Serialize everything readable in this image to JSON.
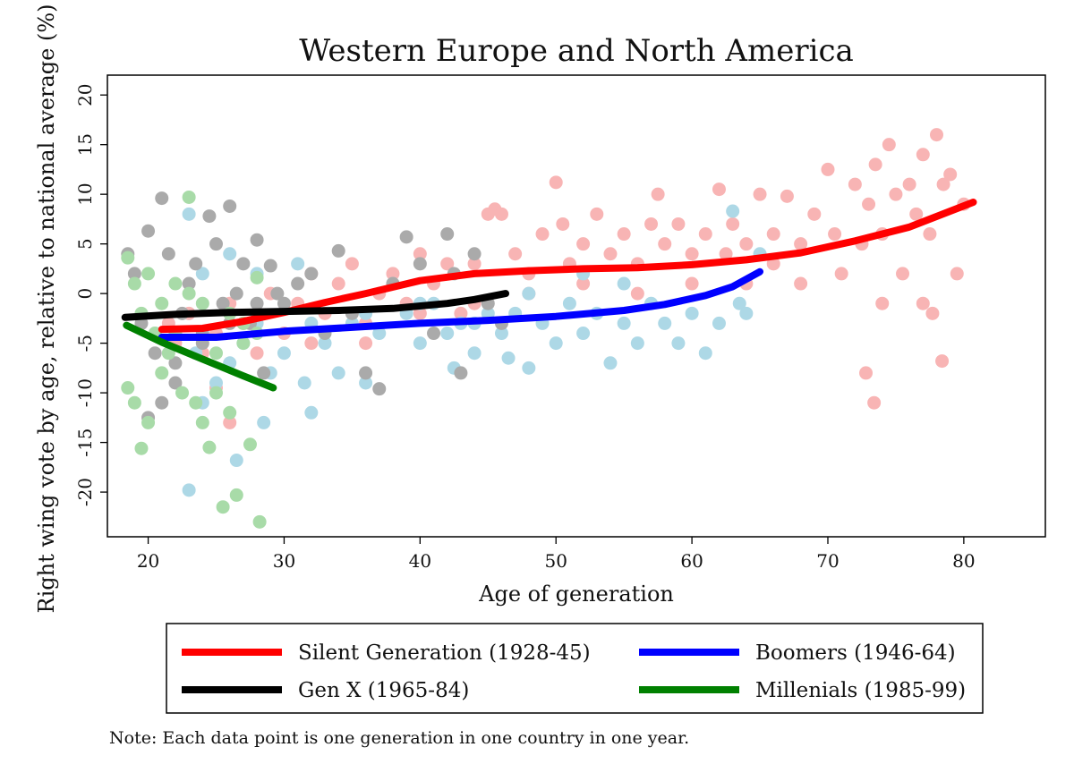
{
  "chart_data": {
    "type": "scatter",
    "title": "Western Europe and North America",
    "xlabel": "Age of generation",
    "ylabel": "Right wing vote by age, relative to national average (%)",
    "xlim": [
      17,
      86
    ],
    "ylim": [
      -24.5,
      22
    ],
    "xticks": [
      20,
      30,
      40,
      50,
      60,
      70,
      80
    ],
    "yticks": [
      -20,
      -15,
      -10,
      -5,
      0,
      5,
      10,
      15,
      20
    ],
    "grid": false,
    "legend_position": "bottom",
    "note": "Note: Each data point is one generation in one country in one year.",
    "series": [
      {
        "name": "Silent Generation (1928-45)",
        "line_color": "#ff0000",
        "point_color": "#f8b4b4",
        "fit_line": [
          [
            21.0,
            -3.6
          ],
          [
            24,
            -3.5
          ],
          [
            27,
            -2.8
          ],
          [
            30,
            -1.9
          ],
          [
            33,
            -0.9
          ],
          [
            36,
            0
          ],
          [
            40,
            1.3
          ],
          [
            44,
            2
          ],
          [
            48,
            2.3
          ],
          [
            52,
            2.5
          ],
          [
            56,
            2.6
          ],
          [
            60,
            2.9
          ],
          [
            64,
            3.4
          ],
          [
            68,
            4.1
          ],
          [
            72,
            5.3
          ],
          [
            76,
            6.7
          ],
          [
            80.7,
            9.2
          ]
        ],
        "points": [
          [
            21.5,
            -3
          ],
          [
            22,
            -5
          ],
          [
            23,
            -2
          ],
          [
            24,
            -6
          ],
          [
            25,
            -4
          ],
          [
            26,
            -1
          ],
          [
            27,
            -3
          ],
          [
            28,
            -2
          ],
          [
            29,
            0
          ],
          [
            30,
            -4
          ],
          [
            31,
            -1
          ],
          [
            32,
            2
          ],
          [
            33,
            -2
          ],
          [
            34,
            1
          ],
          [
            35,
            3
          ],
          [
            36,
            -5
          ],
          [
            37,
            0
          ],
          [
            38,
            2
          ],
          [
            39,
            -1
          ],
          [
            40,
            4
          ],
          [
            41,
            1
          ],
          [
            42,
            3
          ],
          [
            43,
            -2
          ],
          [
            44,
            3
          ],
          [
            45,
            8
          ],
          [
            45.5,
            8.5
          ],
          [
            46,
            8
          ],
          [
            47,
            4
          ],
          [
            48,
            2
          ],
          [
            49,
            6
          ],
          [
            50,
            11.2
          ],
          [
            50.5,
            7
          ],
          [
            51,
            3
          ],
          [
            52,
            5
          ],
          [
            53,
            8
          ],
          [
            54,
            4
          ],
          [
            55,
            6
          ],
          [
            56,
            3
          ],
          [
            57,
            7
          ],
          [
            57.5,
            10
          ],
          [
            58,
            5
          ],
          [
            59,
            7
          ],
          [
            60,
            4
          ],
          [
            61,
            6
          ],
          [
            62,
            10.5
          ],
          [
            62.5,
            4
          ],
          [
            63,
            7
          ],
          [
            64,
            5
          ],
          [
            65,
            10
          ],
          [
            66,
            6
          ],
          [
            67,
            9.8
          ],
          [
            68,
            5
          ],
          [
            69,
            8
          ],
          [
            70,
            12.5
          ],
          [
            70.5,
            6
          ],
          [
            71,
            2
          ],
          [
            72,
            11
          ],
          [
            72.5,
            5
          ],
          [
            73,
            9
          ],
          [
            73.5,
            13
          ],
          [
            74,
            6
          ],
          [
            74.5,
            15
          ],
          [
            75,
            10
          ],
          [
            75.5,
            2
          ],
          [
            76,
            11
          ],
          [
            76.5,
            8
          ],
          [
            77,
            14
          ],
          [
            77.5,
            6
          ],
          [
            78,
            16
          ],
          [
            78.5,
            11
          ],
          [
            79,
            12
          ],
          [
            79.5,
            2
          ],
          [
            80,
            9
          ],
          [
            72.8,
            -8
          ],
          [
            73.4,
            -11
          ],
          [
            74,
            -1
          ],
          [
            77,
            -1
          ],
          [
            77.7,
            -2
          ],
          [
            78.4,
            -6.8
          ],
          [
            68,
            1
          ],
          [
            66,
            3
          ],
          [
            64,
            1
          ],
          [
            60,
            1
          ],
          [
            56,
            0
          ],
          [
            52,
            1
          ],
          [
            48,
            0
          ],
          [
            44,
            -1
          ],
          [
            40,
            -2
          ],
          [
            36,
            -3
          ],
          [
            32,
            -5
          ],
          [
            28,
            -6
          ],
          [
            25,
            -9.5
          ],
          [
            26,
            -13
          ]
        ]
      },
      {
        "name": "Boomers (1946-64)",
        "line_color": "#0000ff",
        "point_color": "#add8e6",
        "fit_line": [
          [
            21.0,
            -4.4
          ],
          [
            25,
            -4.4
          ],
          [
            30,
            -3.8
          ],
          [
            35,
            -3.4
          ],
          [
            40,
            -3.0
          ],
          [
            45,
            -2.7
          ],
          [
            50,
            -2.3
          ],
          [
            55,
            -1.7
          ],
          [
            58,
            -1.1
          ],
          [
            61,
            -0.2
          ],
          [
            63,
            0.7
          ],
          [
            65,
            2.2
          ]
        ],
        "points": [
          [
            22,
            -4
          ],
          [
            23,
            8
          ],
          [
            23.5,
            -6
          ],
          [
            24,
            -11
          ],
          [
            25,
            -9
          ],
          [
            26,
            -7
          ],
          [
            26.5,
            -16.8
          ],
          [
            27,
            -5
          ],
          [
            28,
            -3
          ],
          [
            28.5,
            -13
          ],
          [
            29,
            -8
          ],
          [
            30,
            -6
          ],
          [
            31,
            3
          ],
          [
            31.5,
            -9
          ],
          [
            32,
            -12
          ],
          [
            33,
            -5
          ],
          [
            34,
            -8
          ],
          [
            35,
            -3
          ],
          [
            36,
            -9
          ],
          [
            37,
            -4
          ],
          [
            38,
            1
          ],
          [
            39,
            -2
          ],
          [
            40,
            -5
          ],
          [
            41,
            -1
          ],
          [
            42,
            -4
          ],
          [
            42.5,
            -7.5
          ],
          [
            43,
            -3
          ],
          [
            44,
            -6
          ],
          [
            45,
            -2
          ],
          [
            46,
            -4
          ],
          [
            46.5,
            -6.5
          ],
          [
            47,
            -2
          ],
          [
            48,
            -7.5
          ],
          [
            49,
            -3
          ],
          [
            50,
            -5
          ],
          [
            51,
            -1
          ],
          [
            52,
            -4
          ],
          [
            53,
            -2
          ],
          [
            54,
            -7
          ],
          [
            55,
            -3
          ],
          [
            56,
            -5
          ],
          [
            57,
            -1
          ],
          [
            58,
            -3
          ],
          [
            59,
            -5
          ],
          [
            60,
            -2
          ],
          [
            61,
            -6
          ],
          [
            62,
            -3
          ],
          [
            63,
            8.3
          ],
          [
            63.5,
            -1
          ],
          [
            64,
            -2
          ],
          [
            65,
            4
          ],
          [
            55,
            1
          ],
          [
            52,
            2
          ],
          [
            48,
            0
          ],
          [
            44,
            -3
          ],
          [
            40,
            -1
          ],
          [
            36,
            -2
          ],
          [
            32,
            -3
          ],
          [
            28,
            2
          ],
          [
            26,
            4
          ],
          [
            24,
            2
          ],
          [
            23,
            -19.8
          ]
        ]
      },
      {
        "name": "Gen X (1965-84)",
        "line_color": "#000000",
        "point_color": "#aaaaaa",
        "fit_line": [
          [
            18.3,
            -2.4
          ],
          [
            22,
            -2.1
          ],
          [
            26,
            -1.9
          ],
          [
            30,
            -1.8
          ],
          [
            34,
            -1.7
          ],
          [
            38,
            -1.5
          ],
          [
            42,
            -1.0
          ],
          [
            44,
            -0.6
          ],
          [
            46.3,
            0.0
          ]
        ],
        "points": [
          [
            18.5,
            4
          ],
          [
            19,
            2
          ],
          [
            19.5,
            -3
          ],
          [
            20,
            6.3
          ],
          [
            20.5,
            -6
          ],
          [
            21,
            9.6
          ],
          [
            21.5,
            4
          ],
          [
            22,
            -7
          ],
          [
            22.5,
            -2
          ],
          [
            23,
            1
          ],
          [
            23.5,
            3
          ],
          [
            24,
            -4
          ],
          [
            24.5,
            7.8
          ],
          [
            25,
            5
          ],
          [
            25.5,
            -1
          ],
          [
            26,
            8.8
          ],
          [
            26.5,
            0
          ],
          [
            27,
            3
          ],
          [
            27.5,
            -3
          ],
          [
            28,
            5.4
          ],
          [
            28.5,
            -8
          ],
          [
            29,
            2.8
          ],
          [
            29.5,
            0
          ],
          [
            30,
            -1
          ],
          [
            31,
            1
          ],
          [
            32,
            2
          ],
          [
            33,
            -4
          ],
          [
            34,
            4.3
          ],
          [
            35,
            -2
          ],
          [
            36,
            -8
          ],
          [
            37,
            -9.6
          ],
          [
            38,
            1
          ],
          [
            39,
            5.7
          ],
          [
            40,
            3
          ],
          [
            41,
            -4
          ],
          [
            42,
            6
          ],
          [
            42.5,
            2
          ],
          [
            43,
            -8
          ],
          [
            44,
            4
          ],
          [
            45,
            -1
          ],
          [
            46,
            -3
          ],
          [
            20,
            -12.5
          ],
          [
            21,
            -11
          ],
          [
            22,
            -9
          ],
          [
            24,
            -5
          ],
          [
            26,
            -3
          ],
          [
            28,
            -1
          ]
        ]
      },
      {
        "name": "Millenials (1985-99)",
        "line_color": "#008000",
        "point_color": "#a8dba8",
        "fit_line": [
          [
            18.4,
            -3.2
          ],
          [
            21,
            -4.9
          ],
          [
            24,
            -6.6
          ],
          [
            27,
            -8.3
          ],
          [
            29.2,
            -9.5
          ]
        ],
        "points": [
          [
            18.5,
            3.6
          ],
          [
            19,
            1
          ],
          [
            19.5,
            -2
          ],
          [
            20,
            2
          ],
          [
            20.5,
            -4
          ],
          [
            21,
            -1
          ],
          [
            21.5,
            -6
          ],
          [
            22,
            1
          ],
          [
            22.5,
            -10
          ],
          [
            23,
            9.7
          ],
          [
            23.5,
            -11
          ],
          [
            24,
            -13
          ],
          [
            24.5,
            -15.5
          ],
          [
            25,
            -10
          ],
          [
            25.5,
            -21.5
          ],
          [
            26,
            -12
          ],
          [
            26.5,
            -20.3
          ],
          [
            27,
            -5
          ],
          [
            27.5,
            -15.2
          ],
          [
            28,
            1.6
          ],
          [
            28.2,
            -23
          ],
          [
            18.5,
            -9.5
          ],
          [
            19,
            -11
          ],
          [
            19.5,
            -15.6
          ],
          [
            20,
            -13
          ],
          [
            21,
            -8
          ],
          [
            22,
            -4
          ],
          [
            23,
            0
          ],
          [
            24,
            -1
          ],
          [
            25,
            -6
          ],
          [
            26,
            -2
          ],
          [
            27,
            -3
          ],
          [
            28,
            -4
          ]
        ]
      }
    ]
  }
}
